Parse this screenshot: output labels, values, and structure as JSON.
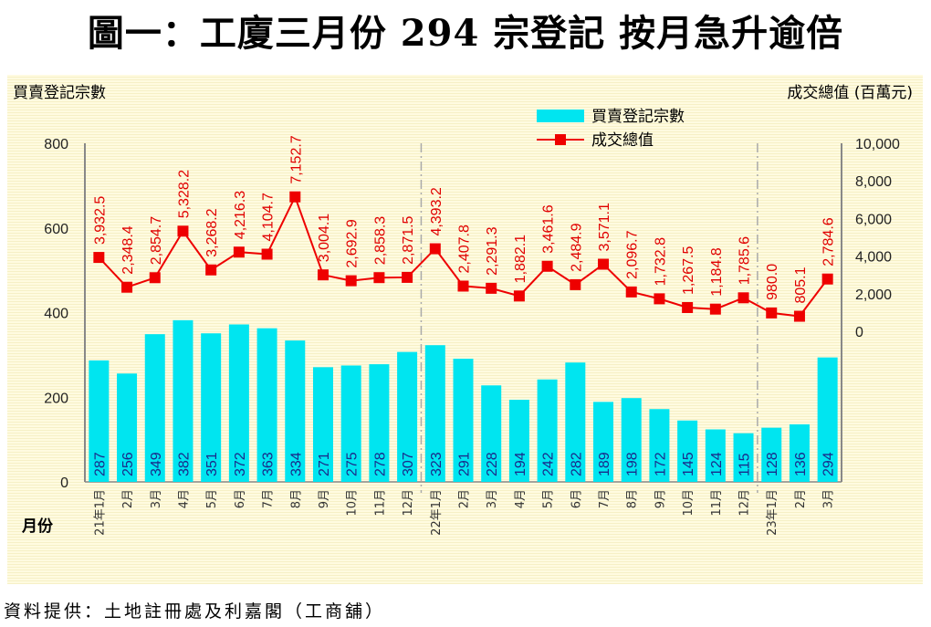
{
  "title": "圖一：工廈三月份 294 宗登記  按月急升逾倍",
  "source": "資料提供：土地註冊處及利嘉閣（工商舖）",
  "chart_data": {
    "type": "bar+line",
    "title": "圖一：工廈三月份 294 宗登記  按月急升逾倍",
    "xlabel": "月份",
    "ylabel": "買賣登記宗數",
    "y2label": "成交總值 (百萬元)",
    "categories": [
      "21年1月",
      "2月",
      "3月",
      "4月",
      "5月",
      "6月",
      "7月",
      "8月",
      "9月",
      "10月",
      "11月",
      "12月",
      "22年1月",
      "2月",
      "3月",
      "4月",
      "5月",
      "6月",
      "7月",
      "8月",
      "9月",
      "10月",
      "11月",
      "12月",
      "23年1月",
      "2月",
      "3月"
    ],
    "series": [
      {
        "name": "買賣登記宗數",
        "type": "bar",
        "axis": "left",
        "color": "#00e5f0",
        "values": [
          287,
          256,
          349,
          382,
          351,
          372,
          363,
          334,
          271,
          275,
          278,
          307,
          323,
          291,
          228,
          194,
          242,
          282,
          189,
          198,
          172,
          145,
          124,
          115,
          128,
          136,
          294
        ],
        "labels": [
          "287",
          "256",
          "349",
          "382",
          "351",
          "372",
          "363",
          "334",
          "271",
          "275",
          "278",
          "307",
          "323",
          "291",
          "228",
          "194",
          "242",
          "282",
          "189",
          "198",
          "172",
          "145",
          "124",
          "115",
          "128",
          "136",
          "294"
        ]
      },
      {
        "name": "成交總值",
        "type": "line",
        "axis": "right",
        "color": "#ee0000",
        "values": [
          3932.5,
          2348.4,
          2854.7,
          5328.2,
          3268.2,
          4216.3,
          4104.7,
          7152.7,
          3004.1,
          2692.9,
          2858.3,
          2871.5,
          4393.2,
          2407.8,
          2291.3,
          1882.1,
          3461.6,
          2484.9,
          3571.1,
          2096.7,
          1732.8,
          1267.5,
          1184.8,
          1785.6,
          980.0,
          805.1,
          2784.6
        ],
        "labels": [
          "3,932.5",
          "2,348.4",
          "2,854.7",
          "5,328.2",
          "3,268.2",
          "4,216.3",
          "4,104.7",
          "7,152.7",
          "3,004.1",
          "2,692.9",
          "2,858.3",
          "2,871.5",
          "4,393.2",
          "2,407.8",
          "2,291.3",
          "1,882.1",
          "3,461.6",
          "2,484.9",
          "3,571.1",
          "2,096.7",
          "1,732.8",
          "1,267.5",
          "1,184.8",
          "1,785.6",
          "980.0",
          "805.1",
          "2,784.6"
        ]
      }
    ],
    "ylim": [
      0,
      800
    ],
    "yticks": [
      "0",
      "200",
      "400",
      "600",
      "800"
    ],
    "y2lim": [
      -8000,
      10000
    ],
    "y2ticks": [
      "0",
      "2,000",
      "4,000",
      "6,000",
      "8,000",
      "10,000"
    ],
    "year_dividers_after": [
      11,
      23
    ],
    "legend": "top-right"
  }
}
